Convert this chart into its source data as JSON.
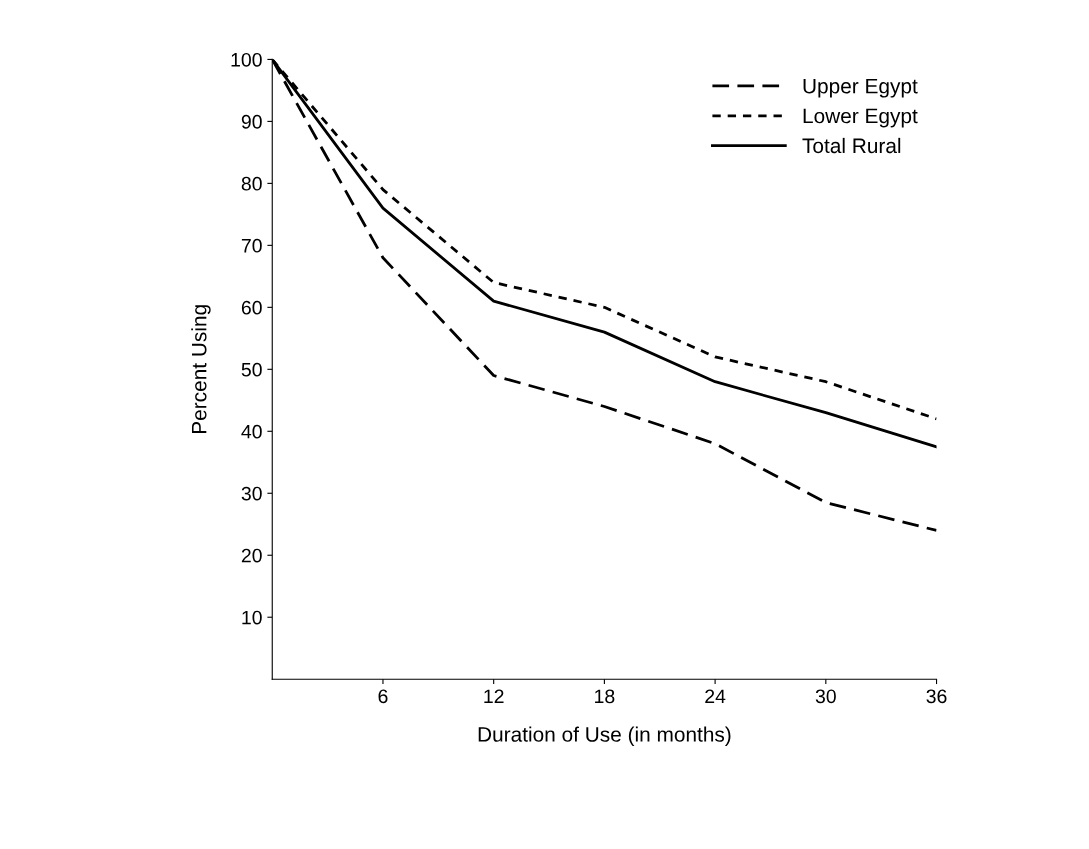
{
  "chart_data": {
    "type": "line",
    "xlabel": "Duration of Use (in months)",
    "ylabel": "Percent Using",
    "x": [
      0,
      6,
      12,
      18,
      24,
      30,
      36
    ],
    "series": [
      {
        "name": "Upper Egypt",
        "color": "#000000",
        "line_style": "dashed",
        "values": [
          100,
          68,
          49,
          44,
          38,
          28.5,
          24
        ]
      },
      {
        "name": "Lower Egypt",
        "color": "#000000",
        "line_style": "dotted",
        "values": [
          100,
          79,
          64,
          60,
          52,
          48,
          42
        ]
      },
      {
        "name": "Total Rural",
        "color": "#000000",
        "line_style": "solid",
        "values": [
          100,
          76,
          61,
          56,
          48,
          43,
          37.5
        ]
      }
    ],
    "xlim": [
      0,
      36
    ],
    "xticks": [
      6,
      12,
      18,
      24,
      30,
      36
    ],
    "ylim": [
      0,
      100
    ],
    "yticks": [
      10,
      20,
      30,
      40,
      50,
      60,
      70,
      80,
      90,
      100
    ],
    "grid": false,
    "legend": "top right",
    "marker": "none"
  }
}
